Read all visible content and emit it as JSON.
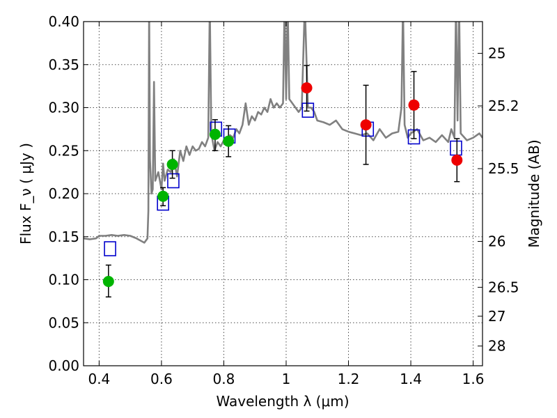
{
  "chart_data": {
    "type": "scatter",
    "xlabel": "Wavelength λ (μm)",
    "ylabel": "Flux F_ν ( μJy )",
    "ylabel_right": "Magnitude (AB)",
    "xlim": [
      0.35,
      1.63
    ],
    "ylim": [
      0.0,
      0.4
    ],
    "grid": true,
    "x_ticks": [
      {
        "value": 0.4,
        "label": "0.4"
      },
      {
        "value": 0.6,
        "label": "0.6"
      },
      {
        "value": 0.8,
        "label": "0.8"
      },
      {
        "value": 1.0,
        "label": "1"
      },
      {
        "value": 1.2,
        "label": "1.2"
      },
      {
        "value": 1.4,
        "label": "1.4"
      },
      {
        "value": 1.6,
        "label": "1.6"
      }
    ],
    "y_ticks": [
      {
        "value": 0.0,
        "label": "0.00"
      },
      {
        "value": 0.05,
        "label": "0.05"
      },
      {
        "value": 0.1,
        "label": "0.10"
      },
      {
        "value": 0.15,
        "label": "0.15"
      },
      {
        "value": 0.2,
        "label": "0.20"
      },
      {
        "value": 0.25,
        "label": "0.25"
      },
      {
        "value": 0.3,
        "label": "0.30"
      },
      {
        "value": 0.35,
        "label": "0.35"
      },
      {
        "value": 0.4,
        "label": "0.40"
      }
    ],
    "right_ticks": [
      {
        "value": 25,
        "label": "25"
      },
      {
        "value": 25.2,
        "label": "25.2"
      },
      {
        "value": 25.5,
        "label": "25.5"
      },
      {
        "value": 26,
        "label": "26"
      },
      {
        "value": 26.5,
        "label": "26.5"
      },
      {
        "value": 27,
        "label": "27"
      },
      {
        "value": 28,
        "label": "28"
      }
    ],
    "colors": {
      "spectrum": "#808080",
      "model": "#0000cc",
      "optical": "#00b400",
      "nir": "#ee0000",
      "errorbar": "#000000",
      "grid": "#000000"
    },
    "spectrum": {
      "x": [
        0.35,
        0.37,
        0.39,
        0.4,
        0.42,
        0.44,
        0.46,
        0.48,
        0.5,
        0.52,
        0.545,
        0.555,
        0.558,
        0.5605,
        0.563,
        0.568,
        0.572,
        0.576,
        0.58,
        0.59,
        0.6,
        0.605,
        0.61,
        0.62,
        0.63,
        0.64,
        0.65,
        0.66,
        0.67,
        0.68,
        0.69,
        0.7,
        0.71,
        0.72,
        0.73,
        0.74,
        0.75,
        0.755,
        0.76,
        0.77,
        0.78,
        0.79,
        0.8,
        0.81,
        0.82,
        0.83,
        0.84,
        0.85,
        0.86,
        0.87,
        0.88,
        0.89,
        0.9,
        0.91,
        0.92,
        0.93,
        0.94,
        0.95,
        0.96,
        0.97,
        0.98,
        0.99,
        0.995,
        1.0,
        1.005,
        1.01,
        1.02,
        1.03,
        1.04,
        1.05,
        1.06,
        1.07,
        1.08,
        1.09,
        1.1,
        1.12,
        1.14,
        1.16,
        1.18,
        1.2,
        1.22,
        1.24,
        1.26,
        1.28,
        1.3,
        1.32,
        1.34,
        1.36,
        1.37,
        1.375,
        1.38,
        1.39,
        1.4,
        1.42,
        1.44,
        1.46,
        1.48,
        1.5,
        1.52,
        1.53,
        1.54,
        1.545,
        1.55,
        1.555,
        1.56,
        1.58,
        1.6,
        1.62,
        1.63
      ],
      "y": [
        0.148,
        0.147,
        0.148,
        0.151,
        0.151,
        0.152,
        0.151,
        0.152,
        0.151,
        0.148,
        0.143,
        0.148,
        0.18,
        0.42,
        0.24,
        0.2,
        0.205,
        0.33,
        0.215,
        0.225,
        0.205,
        0.235,
        0.215,
        0.228,
        0.225,
        0.24,
        0.22,
        0.25,
        0.238,
        0.255,
        0.245,
        0.255,
        0.25,
        0.252,
        0.26,
        0.255,
        0.265,
        0.42,
        0.27,
        0.25,
        0.26,
        0.255,
        0.262,
        0.26,
        0.268,
        0.265,
        0.275,
        0.27,
        0.28,
        0.305,
        0.28,
        0.29,
        0.285,
        0.295,
        0.292,
        0.3,
        0.295,
        0.31,
        0.3,
        0.305,
        0.3,
        0.305,
        0.42,
        0.31,
        0.42,
        0.31,
        0.305,
        0.3,
        0.295,
        0.3,
        0.42,
        0.3,
        0.3,
        0.295,
        0.285,
        0.283,
        0.28,
        0.285,
        0.275,
        0.272,
        0.27,
        0.268,
        0.27,
        0.262,
        0.275,
        0.265,
        0.27,
        0.272,
        0.3,
        0.42,
        0.28,
        0.265,
        0.27,
        0.275,
        0.262,
        0.265,
        0.26,
        0.268,
        0.26,
        0.275,
        0.265,
        0.42,
        0.285,
        0.42,
        0.27,
        0.262,
        0.265,
        0.27,
        0.265
      ]
    },
    "series": [
      {
        "name": "",
        "marker": "open-square",
        "color": "#0000cc",
        "points": [
          {
            "x": 0.435,
            "y": 0.136
          },
          {
            "x": 0.605,
            "y": 0.189
          },
          {
            "x": 0.638,
            "y": 0.215
          },
          {
            "x": 0.775,
            "y": 0.275
          },
          {
            "x": 0.818,
            "y": 0.267
          },
          {
            "x": 1.07,
            "y": 0.297
          },
          {
            "x": 1.262,
            "y": 0.275
          },
          {
            "x": 1.41,
            "y": 0.266
          },
          {
            "x": 1.545,
            "y": 0.253
          }
        ]
      },
      {
        "name": "",
        "marker": "filled-circle",
        "color": "#00b400",
        "points": [
          {
            "x": 0.43,
            "y": 0.098,
            "err": [
              0.08,
              0.117
            ]
          },
          {
            "x": 0.605,
            "y": 0.197,
            "err": [
              0.186,
              0.207
            ]
          },
          {
            "x": 0.635,
            "y": 0.234,
            "err": [
              0.218,
              0.25
            ]
          },
          {
            "x": 0.772,
            "y": 0.269,
            "err": [
              0.25,
              0.286
            ]
          },
          {
            "x": 0.815,
            "y": 0.261,
            "err": [
              0.243,
              0.279
            ]
          }
        ]
      },
      {
        "name": "",
        "marker": "filled-circle",
        "color": "#ee0000",
        "points": [
          {
            "x": 1.066,
            "y": 0.323,
            "err": [
              0.296,
              0.349
            ]
          },
          {
            "x": 1.256,
            "y": 0.28,
            "err": [
              0.234,
              0.326
            ]
          },
          {
            "x": 1.41,
            "y": 0.303,
            "err": [
              0.264,
              0.342
            ]
          },
          {
            "x": 1.548,
            "y": 0.239,
            "err": [
              0.214,
              0.264
            ]
          }
        ]
      }
    ]
  }
}
